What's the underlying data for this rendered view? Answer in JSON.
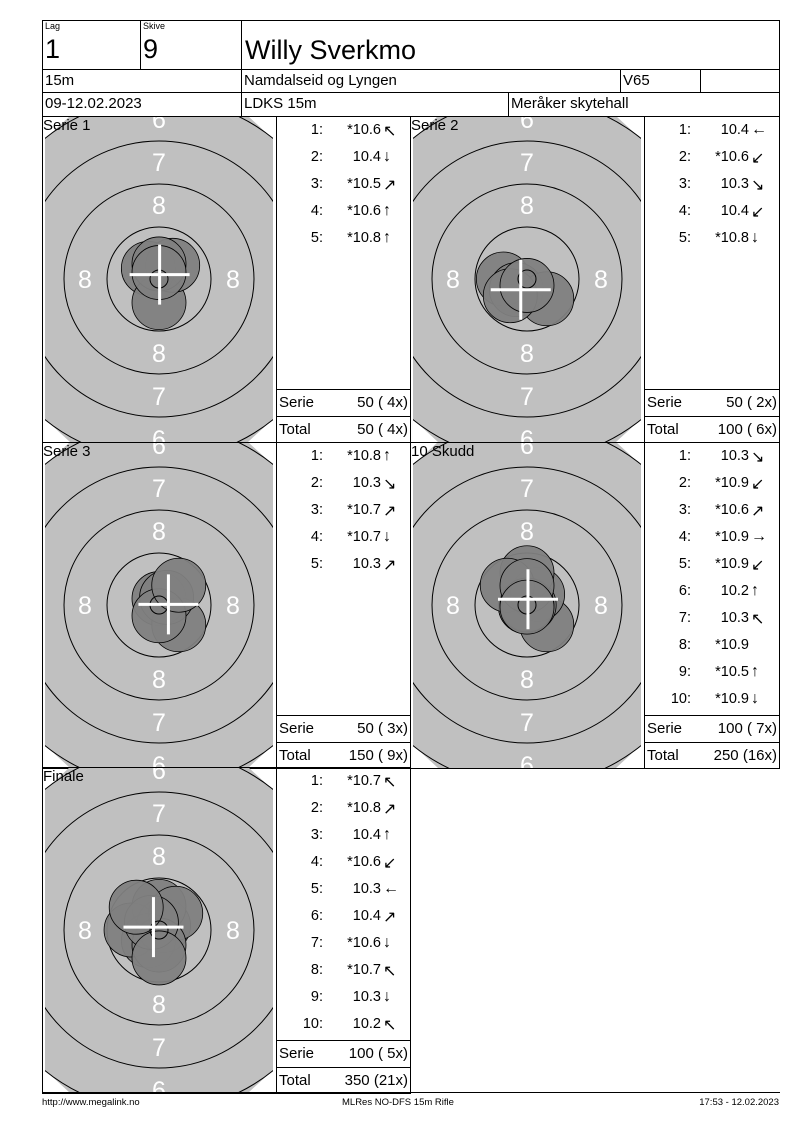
{
  "header": {
    "lag_label": "Lag",
    "lag": "1",
    "skive_label": "Skive",
    "skive": "9",
    "name": "Willy Sverkmo",
    "distance": "15m",
    "club": "Namdalseid og Lyngen",
    "class": "V65",
    "class_extra": "",
    "date": "09-12.02.2023",
    "event": "LDKS 15m",
    "venue": "Meråker skytehall"
  },
  "colors": {
    "target": "#c0c0c0",
    "shot": "#808080",
    "ring_label": "#ffffff"
  },
  "ring_labels": {
    "inner": "8",
    "outer": "7",
    "edge": "6"
  },
  "panels": [
    {
      "title": "Serie 1",
      "serie_label": "Serie",
      "serie": "50 ( 4x)",
      "total_label": "Total",
      "total": "50 ( 4x)",
      "shots": [
        {
          "n": "1:",
          "score": "*10.6",
          "dir": "nw"
        },
        {
          "n": "2:",
          "score": "10.4",
          "dir": "s"
        },
        {
          "n": "3:",
          "score": "*10.5",
          "dir": "ne"
        },
        {
          "n": "4:",
          "score": "*10.6",
          "dir": "n"
        },
        {
          "n": "5:",
          "score": "*10.8",
          "dir": "n"
        }
      ]
    },
    {
      "title": "Serie 2",
      "serie_label": "Serie",
      "serie": "50 ( 2x)",
      "total_label": "Total",
      "total": "100 ( 6x)",
      "shots": [
        {
          "n": "1:",
          "score": "10.4",
          "dir": "w"
        },
        {
          "n": "2:",
          "score": "*10.6",
          "dir": "sw"
        },
        {
          "n": "3:",
          "score": "10.3",
          "dir": "se"
        },
        {
          "n": "4:",
          "score": "10.4",
          "dir": "sw"
        },
        {
          "n": "5:",
          "score": "*10.8",
          "dir": "s"
        }
      ]
    },
    {
      "title": "Serie 3",
      "serie_label": "Serie",
      "serie": "50 ( 3x)",
      "total_label": "Total",
      "total": "150 ( 9x)",
      "shots": [
        {
          "n": "1:",
          "score": "*10.8",
          "dir": "n"
        },
        {
          "n": "2:",
          "score": "10.3",
          "dir": "se"
        },
        {
          "n": "3:",
          "score": "*10.7",
          "dir": "ne"
        },
        {
          "n": "4:",
          "score": "*10.7",
          "dir": "s"
        },
        {
          "n": "5:",
          "score": "10.3",
          "dir": "ne"
        }
      ]
    },
    {
      "title": "10 Skudd",
      "serie_label": "Serie",
      "serie": "100 ( 7x)",
      "total_label": "Total",
      "total": "250 (16x)",
      "shots": [
        {
          "n": "1:",
          "score": "10.3",
          "dir": "se"
        },
        {
          "n": "2:",
          "score": "*10.9",
          "dir": "sw"
        },
        {
          "n": "3:",
          "score": "*10.6",
          "dir": "ne"
        },
        {
          "n": "4:",
          "score": "*10.9",
          "dir": "e"
        },
        {
          "n": "5:",
          "score": "*10.9",
          "dir": "sw"
        },
        {
          "n": "6:",
          "score": "10.2",
          "dir": "n"
        },
        {
          "n": "7:",
          "score": "10.3",
          "dir": "nw"
        },
        {
          "n": "8:",
          "score": "*10.9",
          "dir": ""
        },
        {
          "n": "9:",
          "score": "*10.5",
          "dir": "n"
        },
        {
          "n": "10:",
          "score": "*10.9",
          "dir": "s"
        }
      ]
    },
    {
      "title": "Finale",
      "serie_label": "Serie",
      "serie": "100 ( 5x)",
      "total_label": "Total",
      "total": "350 (21x)",
      "shots": [
        {
          "n": "1:",
          "score": "*10.7",
          "dir": "nw"
        },
        {
          "n": "2:",
          "score": "*10.8",
          "dir": "ne"
        },
        {
          "n": "3:",
          "score": "10.4",
          "dir": "n"
        },
        {
          "n": "4:",
          "score": "*10.6",
          "dir": "sw"
        },
        {
          "n": "5:",
          "score": "10.3",
          "dir": "w"
        },
        {
          "n": "6:",
          "score": "10.4",
          "dir": "ne"
        },
        {
          "n": "7:",
          "score": "*10.6",
          "dir": "s"
        },
        {
          "n": "8:",
          "score": "*10.7",
          "dir": "nw"
        },
        {
          "n": "9:",
          "score": "10.3",
          "dir": "s"
        },
        {
          "n": "10:",
          "score": "10.2",
          "dir": "nw"
        }
      ]
    }
  ],
  "footer": {
    "left": "http://www.megalink.no",
    "center": "MLRes NO-DFS 15m Rifle",
    "right": "17:53 - 12.02.2023"
  }
}
